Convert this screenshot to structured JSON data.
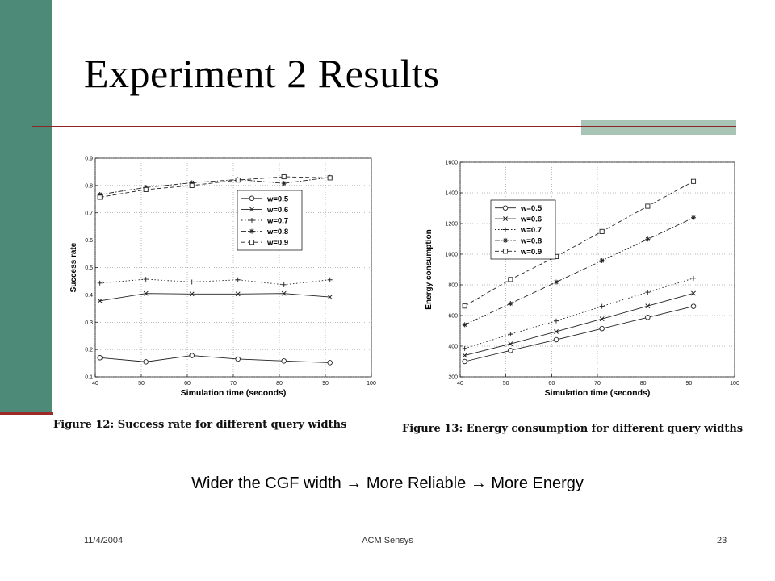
{
  "slide": {
    "title": "Experiment 2 Results",
    "summary": {
      "part1": "Wider the CGF width",
      "part2": "More Reliable",
      "part3": "More Energy",
      "arrow_icon": "right-arrow"
    },
    "footer": {
      "date": "11/4/2004",
      "center": "ACM Sensys",
      "page": "23"
    },
    "colors": {
      "left_bar": "#4e8a78",
      "rule": "#8c2626",
      "accent_block": "#a7c4b5"
    }
  },
  "figures": [
    {
      "caption": "Figure 12: Success rate for different query widths"
    },
    {
      "caption": "Figure 13: Energy consumption for different query widths"
    }
  ],
  "chart_data": [
    {
      "type": "line",
      "xlabel": "Simulation time (seconds)",
      "ylabel": "Success rate",
      "xlim": [
        40,
        100
      ],
      "ylim": [
        0.1,
        0.9
      ],
      "xticks": [
        40,
        50,
        60,
        70,
        80,
        90,
        100
      ],
      "yticks": [
        0.1,
        0.2,
        0.3,
        0.4,
        0.5,
        0.6,
        0.7,
        0.8,
        0.9
      ],
      "grid": true,
      "legend_position": "upper-right",
      "x": [
        41,
        51,
        61,
        71,
        81,
        91
      ],
      "series": [
        {
          "name": "w=0.5",
          "marker": "circle",
          "dash": "solid",
          "values": [
            0.17,
            0.155,
            0.178,
            0.165,
            0.158,
            0.152
          ]
        },
        {
          "name": "w=0.6",
          "marker": "x",
          "dash": "solid",
          "values": [
            0.378,
            0.405,
            0.403,
            0.403,
            0.405,
            0.392
          ]
        },
        {
          "name": "w=0.7",
          "marker": "plus",
          "dash": "dotted",
          "values": [
            0.443,
            0.457,
            0.447,
            0.455,
            0.437,
            0.455
          ]
        },
        {
          "name": "w=0.8",
          "marker": "star",
          "dash": "dashdot",
          "values": [
            0.767,
            0.793,
            0.81,
            0.822,
            0.808,
            0.83
          ]
        },
        {
          "name": "w=0.9",
          "marker": "square",
          "dash": "dashed",
          "values": [
            0.757,
            0.785,
            0.8,
            0.82,
            0.832,
            0.828
          ]
        }
      ]
    },
    {
      "type": "line",
      "xlabel": "Simulation time (seconds)",
      "ylabel": "Energy consumption",
      "xlim": [
        40,
        100
      ],
      "ylim": [
        200,
        1600
      ],
      "xticks": [
        40,
        50,
        60,
        70,
        80,
        90,
        100
      ],
      "yticks": [
        200,
        400,
        600,
        800,
        1000,
        1200,
        1400,
        1600
      ],
      "grid": true,
      "legend_position": "upper-left",
      "x": [
        41,
        51,
        61,
        71,
        81,
        91
      ],
      "series": [
        {
          "name": "w=0.5",
          "marker": "circle",
          "dash": "solid",
          "values": [
            300,
            372,
            442,
            515,
            588,
            660
          ]
        },
        {
          "name": "w=0.6",
          "marker": "x",
          "dash": "solid",
          "values": [
            340,
            415,
            495,
            578,
            662,
            745
          ]
        },
        {
          "name": "w=0.7",
          "marker": "plus",
          "dash": "dotted",
          "values": [
            385,
            478,
            565,
            660,
            752,
            843
          ]
        },
        {
          "name": "w=0.8",
          "marker": "star",
          "dash": "dashdot",
          "values": [
            540,
            678,
            818,
            958,
            1098,
            1238
          ]
        },
        {
          "name": "w=0.9",
          "marker": "square",
          "dash": "dashed",
          "values": [
            662,
            835,
            985,
            1148,
            1313,
            1475
          ]
        }
      ]
    }
  ]
}
